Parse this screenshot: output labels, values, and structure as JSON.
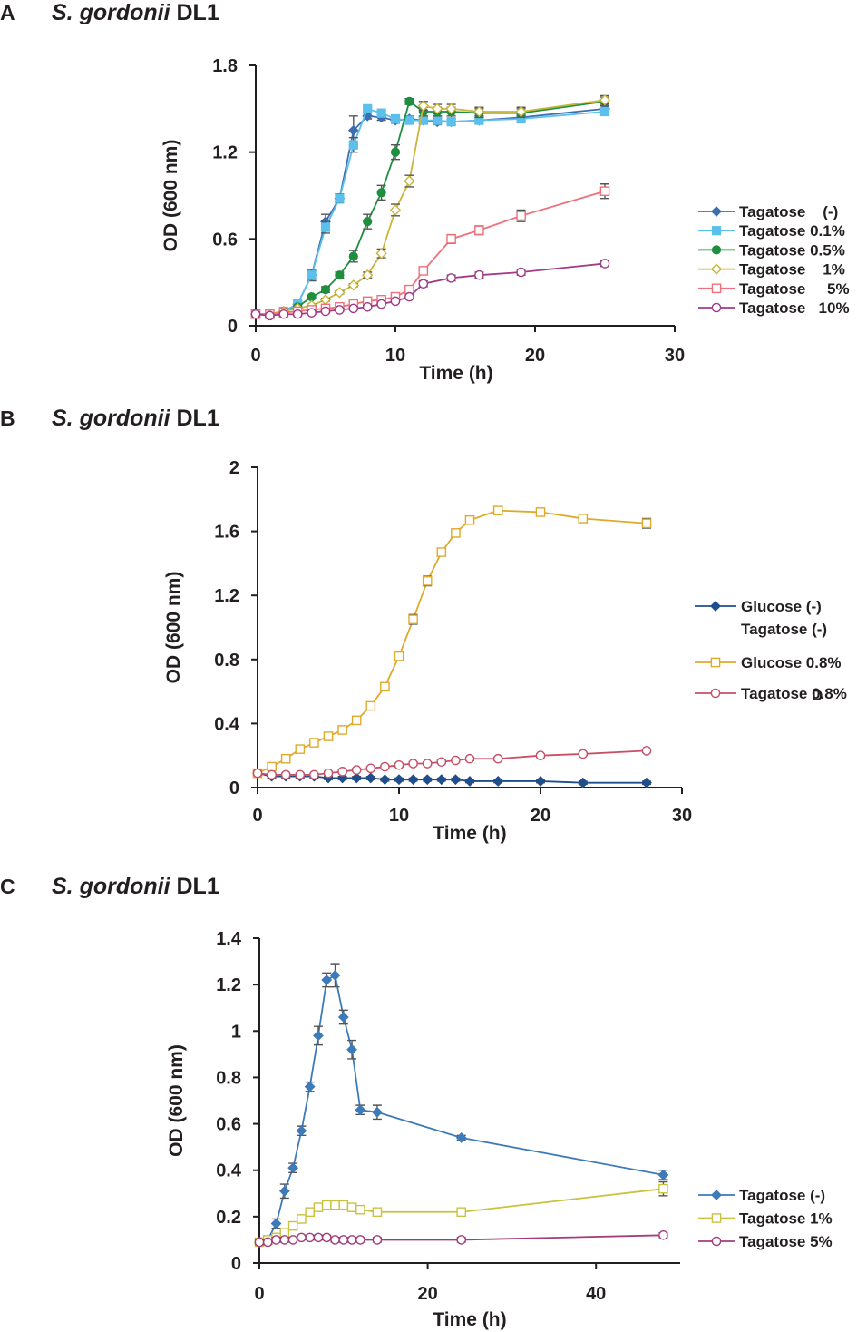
{
  "chart_data": [
    {
      "panel": "A",
      "type": "line",
      "title": "S. gordonii DL1",
      "title_italic": "S. gordonii",
      "title_rest": " DL1",
      "xlabel": "Time (h)",
      "ylabel": "OD (600 nm)",
      "xlim": [
        0,
        30
      ],
      "ylim": [
        0,
        1.8
      ],
      "xticks": [
        0,
        10,
        20,
        30
      ],
      "yticks": [
        0,
        0.6,
        1.2,
        1.8
      ],
      "ytick_labels": [
        "0",
        "0.6",
        "1.2",
        "1.8"
      ],
      "legend_position": "right",
      "series": [
        {
          "name": "Tagatose    (-)",
          "color": "#3d6eb0",
          "marker": "diamond-filled",
          "x": [
            0,
            1,
            2,
            3,
            4,
            5,
            6,
            7,
            8,
            9,
            10,
            11,
            12,
            13,
            14,
            16,
            19,
            25
          ],
          "y": [
            0.08,
            0.08,
            0.1,
            0.15,
            0.35,
            0.72,
            0.88,
            1.35,
            1.45,
            1.44,
            1.42,
            1.43,
            1.42,
            1.41,
            1.41,
            1.42,
            1.44,
            1.5
          ],
          "err": [
            0.01,
            0.01,
            0.01,
            0.02,
            0.04,
            0.05,
            0.03,
            0.1,
            0.02,
            0.02,
            0.02,
            0.02,
            0.02,
            0.02,
            0.02,
            0.02,
            0.02,
            0.02
          ]
        },
        {
          "name": "Tagatose 0.1%",
          "color": "#5bc0eb",
          "marker": "square-filled",
          "x": [
            0,
            1,
            2,
            3,
            4,
            5,
            6,
            7,
            8,
            9,
            10,
            11,
            12,
            13,
            14,
            16,
            19,
            25
          ],
          "y": [
            0.08,
            0.08,
            0.1,
            0.15,
            0.35,
            0.68,
            0.88,
            1.25,
            1.5,
            1.47,
            1.43,
            1.42,
            1.42,
            1.42,
            1.41,
            1.42,
            1.43,
            1.48
          ],
          "err": [
            0.01,
            0.01,
            0.01,
            0.02,
            0.03,
            0.04,
            0.03,
            0.05,
            0.02,
            0.02,
            0.02,
            0.02,
            0.02,
            0.02,
            0.02,
            0.02,
            0.02,
            0.02
          ]
        },
        {
          "name": "Tagatose 0.5%",
          "color": "#1d8f3e",
          "marker": "circle-filled",
          "x": [
            0,
            1,
            2,
            3,
            4,
            5,
            6,
            7,
            8,
            9,
            10,
            11,
            12,
            13,
            14,
            16,
            19,
            25
          ],
          "y": [
            0.08,
            0.08,
            0.1,
            0.13,
            0.2,
            0.25,
            0.35,
            0.48,
            0.72,
            0.92,
            1.2,
            1.55,
            1.48,
            1.48,
            1.48,
            1.47,
            1.47,
            1.55
          ],
          "err": [
            0.01,
            0.01,
            0.01,
            0.01,
            0.01,
            0.02,
            0.02,
            0.04,
            0.05,
            0.05,
            0.05,
            0.02,
            0.03,
            0.03,
            0.03,
            0.03,
            0.03,
            0.03
          ]
        },
        {
          "name": "Tagatose    1%",
          "color": "#c9b53a",
          "marker": "diamond-open",
          "x": [
            0,
            1,
            2,
            3,
            4,
            5,
            6,
            7,
            8,
            9,
            10,
            11,
            12,
            13,
            14,
            16,
            19,
            25
          ],
          "y": [
            0.08,
            0.08,
            0.1,
            0.12,
            0.14,
            0.18,
            0.23,
            0.28,
            0.35,
            0.5,
            0.8,
            1.0,
            1.52,
            1.5,
            1.5,
            1.48,
            1.48,
            1.56
          ],
          "err": [
            0.01,
            0.01,
            0.01,
            0.01,
            0.01,
            0.01,
            0.01,
            0.01,
            0.02,
            0.03,
            0.04,
            0.04,
            0.03,
            0.03,
            0.03,
            0.03,
            0.03,
            0.03
          ]
        },
        {
          "name": "Tagatose     5%",
          "color": "#ef6f7a",
          "marker": "square-open",
          "x": [
            0,
            1,
            2,
            3,
            4,
            5,
            6,
            7,
            8,
            9,
            10,
            11,
            12,
            14,
            16,
            19,
            25
          ],
          "y": [
            0.08,
            0.08,
            0.09,
            0.1,
            0.11,
            0.12,
            0.13,
            0.15,
            0.17,
            0.18,
            0.2,
            0.25,
            0.38,
            0.6,
            0.66,
            0.76,
            0.93
          ],
          "err": [
            0.01,
            0.01,
            0.01,
            0.01,
            0.01,
            0.01,
            0.01,
            0.01,
            0.01,
            0.01,
            0.01,
            0.02,
            0.02,
            0.03,
            0.03,
            0.04,
            0.05
          ]
        },
        {
          "name": "Tagatose   10%",
          "color": "#a23a86",
          "marker": "circle-open",
          "x": [
            0,
            1,
            2,
            3,
            4,
            5,
            6,
            7,
            8,
            9,
            10,
            11,
            12,
            14,
            16,
            19,
            25
          ],
          "y": [
            0.08,
            0.07,
            0.08,
            0.08,
            0.09,
            0.1,
            0.11,
            0.12,
            0.13,
            0.15,
            0.17,
            0.2,
            0.29,
            0.33,
            0.35,
            0.37,
            0.43
          ],
          "err": [
            0.01,
            0.01,
            0.01,
            0.01,
            0.01,
            0.01,
            0.01,
            0.01,
            0.01,
            0.01,
            0.01,
            0.01,
            0.02,
            0.02,
            0.02,
            0.02,
            0.02
          ]
        }
      ]
    },
    {
      "panel": "B",
      "type": "line",
      "title": "S. gordonii DL1",
      "title_italic": "S. gordonii",
      "title_rest": " DL1",
      "xlabel": "Time (h)",
      "ylabel": "OD (600 nm)",
      "xlim": [
        0,
        30
      ],
      "ylim": [
        0,
        2
      ],
      "xticks": [
        0,
        10,
        20,
        30
      ],
      "yticks": [
        0,
        0.4,
        0.8,
        1.2,
        1.6,
        2
      ],
      "ytick_labels": [
        "0",
        "0.4",
        "0.8",
        "1.2",
        "1.6",
        "2"
      ],
      "legend_position": "right",
      "stray_label": "D",
      "series": [
        {
          "name": "Glucose (-)",
          "name_line2": "Tagatose (-)",
          "color": "#1f4e8c",
          "marker": "diamond-filled",
          "x": [
            0,
            1,
            2,
            3,
            4,
            5,
            6,
            7,
            8,
            9,
            10,
            11,
            12,
            13,
            14,
            15,
            17,
            20,
            23,
            27.5
          ],
          "y": [
            0.09,
            0.07,
            0.07,
            0.07,
            0.07,
            0.06,
            0.06,
            0.06,
            0.06,
            0.05,
            0.05,
            0.05,
            0.05,
            0.05,
            0.05,
            0.04,
            0.04,
            0.04,
            0.03,
            0.03
          ],
          "err": [
            0.01,
            0.01,
            0.01,
            0.01,
            0.01,
            0.01,
            0.01,
            0.01,
            0.01,
            0.01,
            0.01,
            0.01,
            0.01,
            0.01,
            0.01,
            0.01,
            0.01,
            0.01,
            0.01,
            0.01
          ]
        },
        {
          "name": "Glucose 0.8%",
          "color": "#e0a92a",
          "marker": "square-open",
          "x": [
            0,
            1,
            2,
            3,
            4,
            5,
            6,
            7,
            8,
            9,
            10,
            11,
            12,
            13,
            14,
            15,
            17,
            20,
            23,
            27.5
          ],
          "y": [
            0.09,
            0.13,
            0.18,
            0.24,
            0.28,
            0.32,
            0.36,
            0.42,
            0.51,
            0.63,
            0.82,
            1.05,
            1.29,
            1.47,
            1.59,
            1.67,
            1.73,
            1.72,
            1.68,
            1.65
          ],
          "err": [
            0.01,
            0.01,
            0.01,
            0.01,
            0.01,
            0.01,
            0.01,
            0.02,
            0.02,
            0.02,
            0.02,
            0.03,
            0.03,
            0.02,
            0.02,
            0.02,
            0.02,
            0.02,
            0.02,
            0.03
          ]
        },
        {
          "name": "Tagatose 0.8%",
          "color": "#c94f67",
          "marker": "circle-open",
          "x": [
            0,
            1,
            2,
            3,
            4,
            5,
            6,
            7,
            8,
            9,
            10,
            11,
            12,
            13,
            14,
            15,
            17,
            20,
            23,
            27.5
          ],
          "y": [
            0.09,
            0.08,
            0.08,
            0.08,
            0.08,
            0.09,
            0.1,
            0.11,
            0.12,
            0.13,
            0.14,
            0.15,
            0.15,
            0.16,
            0.17,
            0.18,
            0.18,
            0.2,
            0.21,
            0.23
          ],
          "err": [
            0.01,
            0.01,
            0.01,
            0.01,
            0.01,
            0.01,
            0.01,
            0.01,
            0.01,
            0.01,
            0.01,
            0.01,
            0.01,
            0.01,
            0.01,
            0.01,
            0.01,
            0.01,
            0.01,
            0.01
          ]
        }
      ]
    },
    {
      "panel": "C",
      "type": "line",
      "title": "S. gordonii DL1",
      "title_italic": "S. gordonii",
      "title_rest": " DL1",
      "xlabel": "Time (h)",
      "ylabel": "OD (600 nm)",
      "xlim": [
        0,
        50
      ],
      "ylim": [
        0,
        1.4
      ],
      "xticks": [
        0,
        20,
        40
      ],
      "yticks": [
        0,
        0.2,
        0.4,
        0.6,
        0.8,
        1,
        1.2,
        1.4
      ],
      "ytick_labels": [
        "0",
        "0.2",
        "0.4",
        "0.6",
        "0.8",
        "1",
        "1.2",
        "1.4"
      ],
      "legend_position": "right",
      "series": [
        {
          "name": "Tagatose (-)",
          "color": "#3d7ab8",
          "marker": "diamond-filled",
          "x": [
            0,
            1,
            2,
            3,
            4,
            5,
            6,
            7,
            8,
            9,
            10,
            11,
            12,
            14,
            24,
            48
          ],
          "y": [
            0.09,
            0.1,
            0.17,
            0.31,
            0.41,
            0.57,
            0.76,
            0.98,
            1.22,
            1.24,
            1.06,
            0.92,
            0.66,
            0.65,
            0.54,
            0.38
          ],
          "err": [
            0.01,
            0.01,
            0.02,
            0.03,
            0.02,
            0.02,
            0.02,
            0.04,
            0.03,
            0.05,
            0.03,
            0.04,
            0.02,
            0.03,
            0.01,
            0.02
          ]
        },
        {
          "name": "Tagatose 1%",
          "color": "#c9c23e",
          "marker": "square-open",
          "x": [
            0,
            1,
            2,
            3,
            4,
            5,
            6,
            7,
            8,
            9,
            10,
            11,
            12,
            14,
            24,
            48
          ],
          "y": [
            0.09,
            0.1,
            0.11,
            0.13,
            0.16,
            0.19,
            0.22,
            0.24,
            0.25,
            0.25,
            0.25,
            0.24,
            0.23,
            0.22,
            0.22,
            0.32
          ],
          "err": [
            0.01,
            0.01,
            0.01,
            0.01,
            0.01,
            0.01,
            0.01,
            0.01,
            0.01,
            0.01,
            0.01,
            0.01,
            0.01,
            0.01,
            0.01,
            0.03
          ]
        },
        {
          "name": "Tagatose 5%",
          "color": "#a33d7c",
          "marker": "circle-open",
          "x": [
            0,
            1,
            2,
            3,
            4,
            5,
            6,
            7,
            8,
            9,
            10,
            11,
            12,
            14,
            24,
            48
          ],
          "y": [
            0.09,
            0.09,
            0.1,
            0.1,
            0.1,
            0.11,
            0.11,
            0.11,
            0.11,
            0.1,
            0.1,
            0.1,
            0.1,
            0.1,
            0.1,
            0.12
          ],
          "err": [
            0.01,
            0.01,
            0.01,
            0.01,
            0.01,
            0.01,
            0.01,
            0.01,
            0.01,
            0.01,
            0.01,
            0.01,
            0.01,
            0.01,
            0.01,
            0.01
          ]
        }
      ]
    }
  ]
}
